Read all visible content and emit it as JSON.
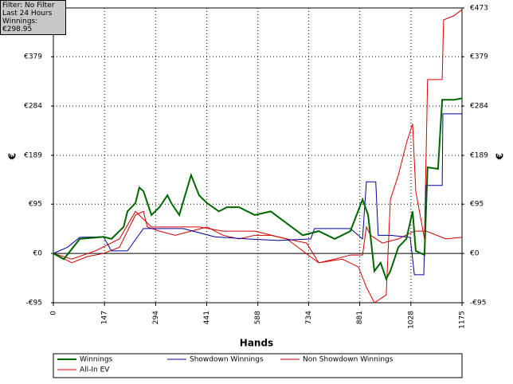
{
  "info_box": {
    "filter": "Filter: No Filter",
    "period": "Last  24 Hours",
    "winnings": "Winnings: €298.95"
  },
  "chart_data": {
    "type": "line",
    "x_label": "Hands",
    "y_label": "€",
    "xlim": [
      0,
      1175
    ],
    "xticks": [
      0,
      147,
      294,
      441,
      588,
      734,
      881,
      1028,
      1175
    ],
    "ylim": [
      -95,
      473
    ],
    "yticks": [
      {
        "value": -95,
        "label": "-€95"
      },
      {
        "value": 0,
        "label": "€0"
      },
      {
        "value": 95,
        "label": "€95"
      },
      {
        "value": 189,
        "label": "€189"
      },
      {
        "value": 284,
        "label": "€284"
      },
      {
        "value": 379,
        "label": "€379"
      },
      {
        "value": 473,
        "label": "€473"
      }
    ],
    "grid": true,
    "series": [
      {
        "name": "Winnings",
        "color": "#006600",
        "x": [
          0,
          30,
          76,
          144,
          167,
          202,
          213,
          236,
          247,
          259,
          282,
          305,
          328,
          339,
          362,
          396,
          419,
          442,
          476,
          499,
          534,
          579,
          625,
          671,
          717,
          763,
          809,
          854,
          889,
          905,
          923,
          941,
          957,
          969,
          992,
          1015,
          1033,
          1042,
          1067,
          1076,
          1106,
          1118,
          1152,
          1175
        ],
        "values": [
          0,
          -11,
          28,
          32,
          28,
          51,
          81,
          97,
          127,
          120,
          74,
          89,
          112,
          97,
          74,
          151,
          112,
          97,
          81,
          89,
          89,
          74,
          81,
          58,
          35,
          43,
          28,
          43,
          104,
          74,
          -34,
          -18,
          -49,
          -34,
          12,
          28,
          81,
          5,
          -3,
          166,
          163,
          296,
          296,
          299
        ]
      },
      {
        "name": "Showdown Winnings",
        "color": "#000099",
        "x": [
          0,
          41,
          76,
          144,
          167,
          213,
          259,
          373,
          464,
          556,
          648,
          740,
          751,
          854,
          889,
          900,
          927,
          934,
          969,
          1026,
          1038,
          1065,
          1072,
          1118,
          1120,
          1175
        ],
        "values": [
          0,
          12,
          31,
          32,
          5,
          5,
          48,
          48,
          32,
          28,
          25,
          28,
          48,
          48,
          28,
          138,
          138,
          35,
          35,
          31,
          -41,
          -41,
          131,
          131,
          269,
          269
        ]
      },
      {
        "name": "Non Showdown Winnings",
        "color": "#cc0000",
        "x": [
          0,
          53,
          98,
          144,
          190,
          236,
          259,
          270,
          305,
          350,
          396,
          442,
          488,
          534,
          579,
          625,
          671,
          728,
          763,
          809,
          854,
          889,
          900,
          912,
          946,
          992,
          1038,
          1072,
          1129,
          1175
        ],
        "values": [
          0,
          -18,
          -6,
          0,
          12,
          74,
          81,
          51,
          43,
          35,
          43,
          51,
          35,
          28,
          35,
          35,
          28,
          20,
          -18,
          -11,
          -3,
          -3,
          51,
          35,
          20,
          28,
          43,
          43,
          28,
          31
        ]
      },
      {
        "name": "All-In EV",
        "color": "#dd0000",
        "x": [
          0,
          53,
          121,
          190,
          236,
          282,
          350,
          419,
          488,
          579,
          671,
          717,
          763,
          831,
          877,
          900,
          923,
          957,
          969,
          992,
          1015,
          1033,
          1042,
          1067,
          1076,
          1118,
          1122,
          1152,
          1175
        ],
        "values": [
          0,
          -11,
          5,
          28,
          81,
          51,
          51,
          51,
          43,
          43,
          28,
          5,
          -18,
          -11,
          -26,
          -65,
          -95,
          -80,
          104,
          151,
          212,
          250,
          120,
          28,
          335,
          335,
          450,
          458,
          470
        ]
      }
    ]
  }
}
